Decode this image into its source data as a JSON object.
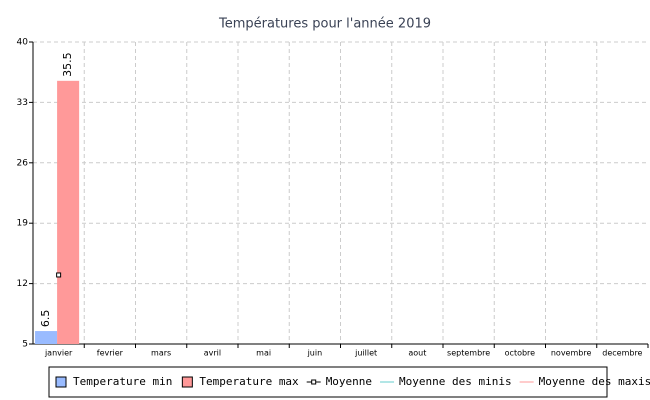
{
  "chart_data": {
    "type": "bar",
    "title": "Températures pour l'année 2019",
    "categories": [
      "janvier",
      "fevrier",
      "mars",
      "avril",
      "mai",
      "juin",
      "juillet",
      "aout",
      "septembre",
      "octobre",
      "novembre",
      "decembre"
    ],
    "series": [
      {
        "name": "Temperature min",
        "color": "#99bbff",
        "type": "bar",
        "values": [
          6.5,
          null,
          null,
          null,
          null,
          null,
          null,
          null,
          null,
          null,
          null,
          null
        ]
      },
      {
        "name": "Temperature max",
        "color": "#ff9999",
        "type": "bar",
        "values": [
          35.5,
          null,
          null,
          null,
          null,
          null,
          null,
          null,
          null,
          null,
          null,
          null
        ]
      },
      {
        "name": "Moyenne",
        "color": "#000000",
        "type": "line",
        "values": [
          13,
          null,
          null,
          null,
          null,
          null,
          null,
          null,
          null,
          null,
          null,
          null
        ]
      },
      {
        "name": "Moyenne des minis",
        "color": "#66cccc",
        "type": "line",
        "values": [
          null,
          null,
          null,
          null,
          null,
          null,
          null,
          null,
          null,
          null,
          null,
          null
        ]
      },
      {
        "name": "Moyenne des maxis",
        "color": "#ff9999",
        "type": "line",
        "values": [
          null,
          null,
          null,
          null,
          null,
          null,
          null,
          null,
          null,
          null,
          null,
          null
        ]
      }
    ],
    "ylim": [
      5,
      40
    ],
    "yticks": [
      5,
      12,
      19,
      26,
      33,
      40
    ],
    "grid": true
  }
}
